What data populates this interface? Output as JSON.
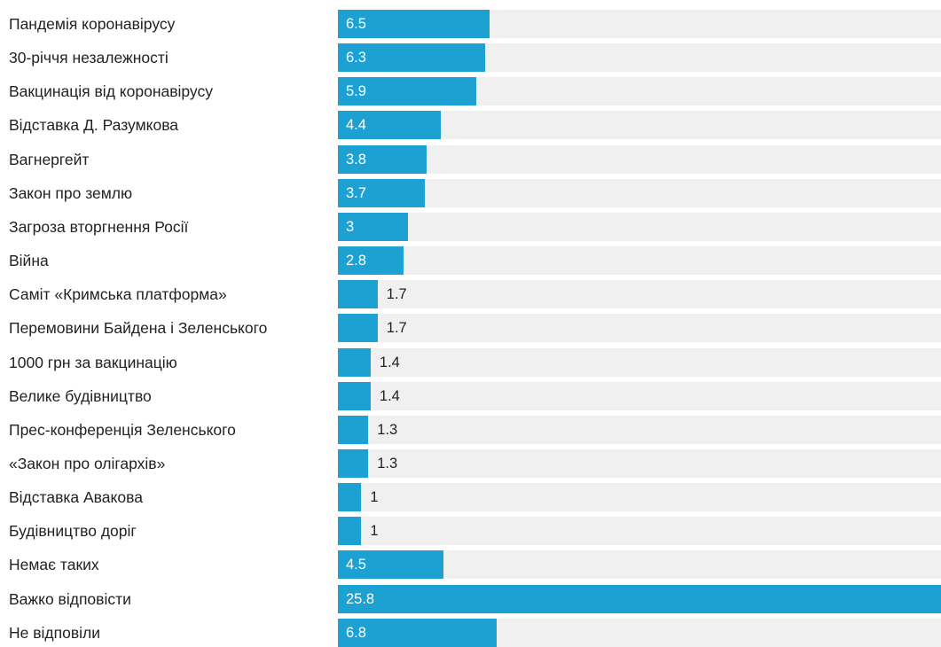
{
  "colors": {
    "bar": "#1da1d2",
    "track": "#f0f0f0",
    "label_text": "#222222",
    "value_text_inside": "#ffffff",
    "value_text_outside": "#222222"
  },
  "chart_data": {
    "type": "bar",
    "orientation": "horizontal",
    "title": "",
    "xlabel": "",
    "ylabel": "",
    "xlim": [
      0,
      25.8
    ],
    "grid": false,
    "legend": "none",
    "categories": [
      "Пандемія коронавірусу",
      "30-річчя незалежності",
      "Вакцинація від коронавірусу",
      "Відставка Д. Разумкова",
      "Вагнергейт",
      "Закон про землю",
      "Загроза вторгнення Росії",
      "Війна",
      "Саміт «Кримська платформа»",
      "Перемовини Байдена і Зеленського",
      "1000 грн за вакцинацію",
      "Велике будівництво",
      "Прес-конференція Зеленського",
      "«Закон про олігархів»",
      "Відставка Авакова",
      "Будівництво доріг",
      "Немає таких",
      "Важко відповісти",
      "Не відповіли"
    ],
    "values": [
      6.5,
      6.3,
      5.9,
      4.4,
      3.8,
      3.7,
      3,
      2.8,
      1.7,
      1.7,
      1.4,
      1.4,
      1.3,
      1.3,
      1,
      1,
      4.5,
      25.8,
      6.8
    ],
    "value_labels": [
      "6.5",
      "6.3",
      "5.9",
      "4.4",
      "3.8",
      "3.7",
      "3",
      "2.8",
      "1.7",
      "1.7",
      "1.4",
      "1.4",
      "1.3",
      "1.3",
      "1",
      "1",
      "4.5",
      "25.8",
      "6.8"
    ]
  }
}
